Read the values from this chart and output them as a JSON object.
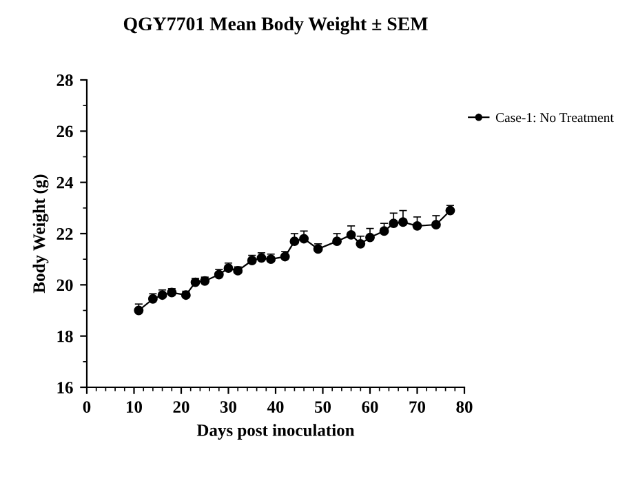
{
  "chart_data": {
    "type": "line",
    "title": "QGY7701 Mean Body Weight ± SEM",
    "xlabel": "Days post inoculation",
    "ylabel": "Body Weight (g)",
    "x": [
      11,
      14,
      16,
      18,
      21,
      23,
      25,
      28,
      30,
      32,
      35,
      37,
      39,
      42,
      44,
      46,
      49,
      53,
      56,
      58,
      60,
      63,
      65,
      67,
      70,
      74,
      77
    ],
    "series": [
      {
        "name": "Case-1: No Treatment",
        "color": "#000000",
        "values": [
          19.0,
          19.45,
          19.6,
          19.7,
          19.6,
          20.1,
          20.15,
          20.4,
          20.65,
          20.55,
          20.95,
          21.05,
          21.0,
          21.1,
          21.7,
          21.8,
          21.4,
          21.7,
          21.95,
          21.6,
          21.85,
          22.1,
          22.4,
          22.45,
          22.3,
          22.35,
          22.9
        ],
        "errors": [
          0.25,
          0.2,
          0.2,
          0.15,
          0.15,
          0.15,
          0.15,
          0.2,
          0.2,
          0.15,
          0.2,
          0.2,
          0.2,
          0.2,
          0.3,
          0.3,
          0.2,
          0.3,
          0.35,
          0.3,
          0.35,
          0.3,
          0.4,
          0.45,
          0.35,
          0.35,
          0.2
        ]
      }
    ],
    "xlim": [
      0,
      80
    ],
    "xticks": [
      0,
      10,
      20,
      30,
      40,
      50,
      60,
      70,
      80
    ],
    "ylim": [
      16,
      28
    ],
    "yticks": [
      16,
      18,
      20,
      22,
      24,
      26,
      28
    ],
    "marker": "circle",
    "line_style": "solid",
    "legend": "right",
    "grid": false
  }
}
